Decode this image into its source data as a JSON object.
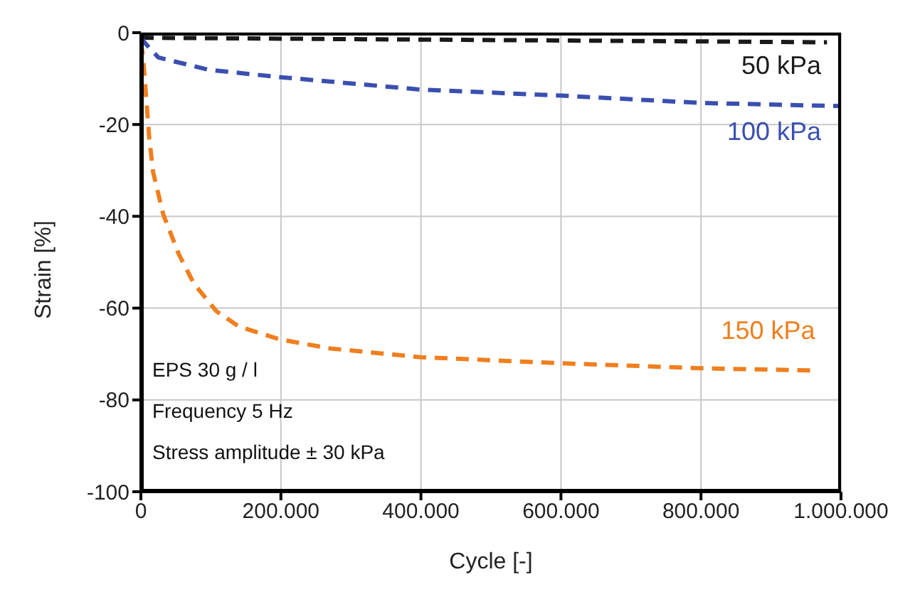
{
  "chart_data": {
    "type": "line",
    "xlabel": "Cycle [-]",
    "ylabel": "Strain [%]",
    "xlim": [
      0,
      1000000
    ],
    "xticks": [
      0,
      {
        "value": 200000,
        "label": "200.000"
      },
      {
        "value": 400000,
        "label": "400.000"
      },
      {
        "value": 600000,
        "label": "600.000"
      },
      {
        "value": 800000,
        "label": "800.000"
      },
      {
        "value": 1000000,
        "label": "1.000.000"
      }
    ],
    "ylim": [
      -100,
      0
    ],
    "yticks": [
      -100,
      -80,
      -60,
      -40,
      -20,
      0
    ],
    "grid": true,
    "marker": "none",
    "annotations": [
      "EPS 30 g / l",
      "Frequency 5 Hz",
      "Stress amplitude ± 30 kPa"
    ],
    "series": [
      {
        "name": "50 kPa",
        "color": "#1a1a1a",
        "line_style": "dashed",
        "x": [
          0,
          200000,
          400000,
          600000,
          800000,
          980000
        ],
        "values": [
          -1.1,
          -1.3,
          -1.5,
          -1.7,
          -1.9,
          -2.1
        ]
      },
      {
        "name": "100 kPa",
        "color": "#3a4fb0",
        "line_style": "dashed",
        "x": [
          0,
          5000,
          25000,
          97000,
          200000,
          400000,
          600000,
          800000,
          1000000
        ],
        "values": [
          -1,
          -2.1,
          -5.4,
          -8.1,
          -9.7,
          -12.4,
          -13.7,
          -15.3,
          -16
        ]
      },
      {
        "name": "150 kPa",
        "color": "#f07f1e",
        "line_style": "dashed",
        "x": [
          0,
          3000,
          8000,
          12000,
          17500,
          32000,
          54000,
          76000,
          108000,
          140000,
          198000,
          271000,
          400000,
          599000,
          800000,
          963000
        ],
        "values": [
          -2,
          -5,
          -15,
          -23,
          -30.4,
          -39.6,
          -48.2,
          -54.7,
          -60.7,
          -64,
          -66.8,
          -68.8,
          -70.7,
          -72,
          -73.1,
          -73.6
        ]
      }
    ]
  }
}
